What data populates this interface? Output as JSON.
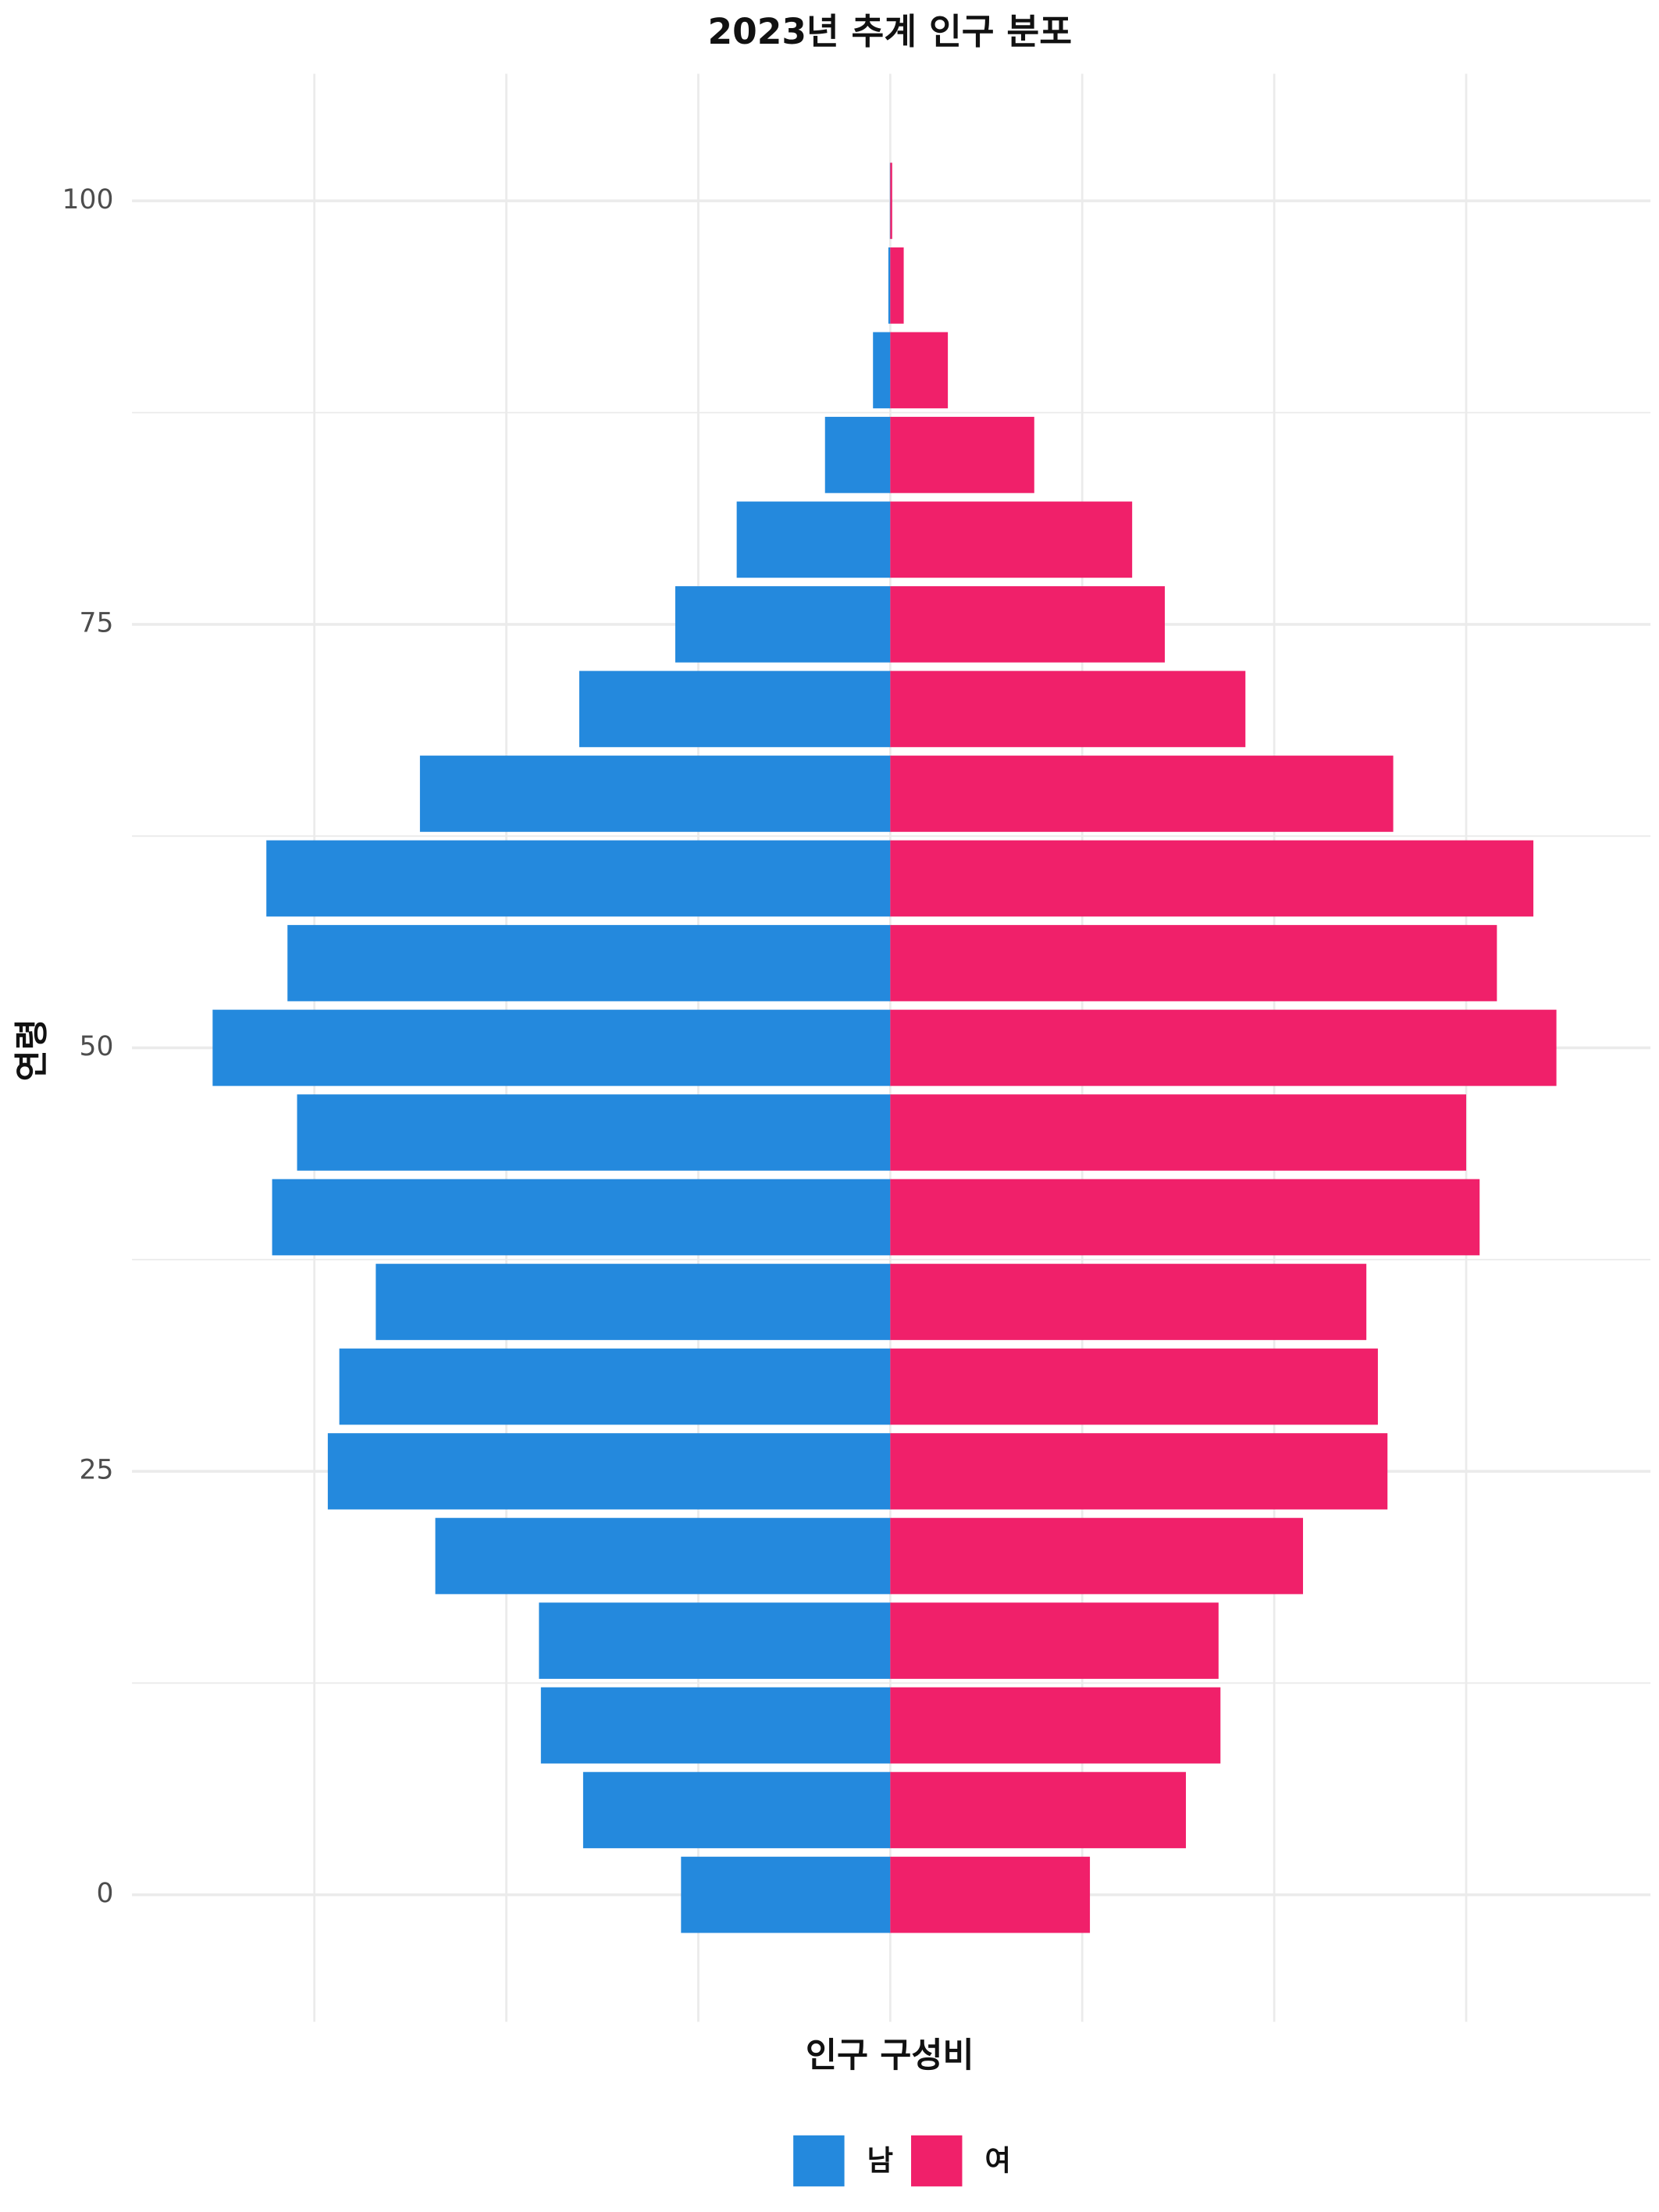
{
  "chart_data": {
    "type": "pyramid",
    "title": "2023년 추계 인구 분포",
    "x_label": "인구 구성비",
    "y_label": "연령",
    "y": [
      0,
      5,
      10,
      15,
      20,
      25,
      30,
      35,
      40,
      45,
      50,
      55,
      60,
      65,
      70,
      75,
      80,
      85,
      90,
      95,
      100
    ],
    "series": [
      {
        "name": "남",
        "color": "#2489dd",
        "values": [
          -1.09,
          -1.6,
          -1.82,
          -1.83,
          -2.37,
          -2.93,
          -2.87,
          -2.68,
          -3.22,
          -3.09,
          -3.53,
          -3.14,
          -3.25,
          -2.45,
          -1.62,
          -1.12,
          -0.8,
          -0.34,
          -0.09,
          -0.01,
          -0.002
        ]
      },
      {
        "name": "여",
        "color": "#f0206a",
        "values": [
          1.04,
          1.54,
          1.72,
          1.71,
          2.15,
          2.59,
          2.54,
          2.48,
          3.07,
          3.0,
          3.47,
          3.16,
          3.35,
          2.62,
          1.85,
          1.43,
          1.26,
          0.75,
          0.3,
          0.07,
          0.01
        ]
      }
    ],
    "xlim": [
      -3.95,
      3.96
    ],
    "xticks": [
      -3,
      -2,
      -1,
      0,
      1,
      2,
      3
    ],
    "xtick_labels": false,
    "ylim": [
      -7.5,
      107.5
    ],
    "yticks": [
      0,
      25,
      50,
      75,
      100
    ],
    "yminor": [
      12.5,
      37.5,
      62.5,
      87.5
    ],
    "grid": true,
    "legend": "bottom"
  }
}
